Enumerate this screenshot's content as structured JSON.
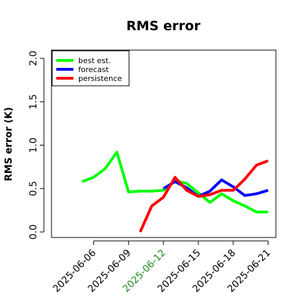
{
  "chart_data": {
    "type": "line",
    "title": "RMS error",
    "ylabel": "RMS error (K)",
    "ylim": [
      0.0,
      2.0
    ],
    "yticks": [
      "0.0",
      "0.5",
      "1.0",
      "1.5",
      "2.0"
    ],
    "x_start": "2025-06-04",
    "xticks": [
      "2025-06-06",
      "2025-06-09",
      "2025-06-12",
      "2025-06-15",
      "2025-06-18",
      "2025-06-21"
    ],
    "xtick_colors": [
      "#000000",
      "#000000",
      "#228B22",
      "#000000",
      "#000000",
      "#000000"
    ],
    "grid": false,
    "legend_position": "top-left",
    "series": [
      {
        "name": "best est.",
        "color": "#00ff00",
        "x": [
          "2025-06-05",
          "2025-06-06",
          "2025-06-07",
          "2025-06-08",
          "2025-06-09",
          "2025-06-10",
          "2025-06-11",
          "2025-06-12",
          "2025-06-13",
          "2025-06-14",
          "2025-06-15",
          "2025-06-16",
          "2025-06-17",
          "2025-06-18",
          "2025-06-19",
          "2025-06-20",
          "2025-06-21"
        ],
        "values": [
          0.58,
          0.63,
          0.73,
          0.92,
          0.46,
          0.47,
          0.47,
          0.48,
          0.59,
          0.56,
          0.45,
          0.34,
          0.44,
          0.36,
          0.3,
          0.23,
          0.23
        ]
      },
      {
        "name": "forecast",
        "color": "#0000ff",
        "x": [
          "2025-06-12",
          "2025-06-13",
          "2025-06-14",
          "2025-06-15",
          "2025-06-16",
          "2025-06-17",
          "2025-06-18",
          "2025-06-19",
          "2025-06-20",
          "2025-06-21"
        ],
        "values": [
          0.5,
          0.58,
          0.51,
          0.41,
          0.47,
          0.6,
          0.52,
          0.42,
          0.44,
          0.48
        ]
      },
      {
        "name": "persistence",
        "color": "#ff0000",
        "x": [
          "2025-06-10",
          "2025-06-11",
          "2025-06-12",
          "2025-06-13",
          "2025-06-14",
          "2025-06-15",
          "2025-06-16",
          "2025-06-17",
          "2025-06-18",
          "2025-06-19",
          "2025-06-20",
          "2025-06-21"
        ],
        "values": [
          0.0,
          0.3,
          0.4,
          0.63,
          0.48,
          0.41,
          0.43,
          0.48,
          0.48,
          0.61,
          0.77,
          0.82
        ]
      }
    ]
  }
}
